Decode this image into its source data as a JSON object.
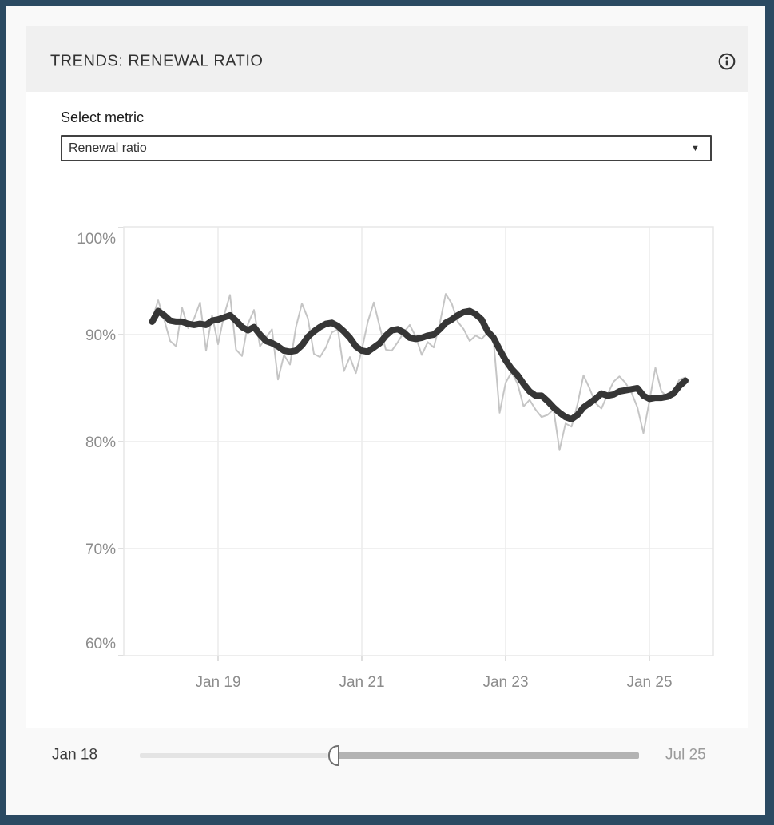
{
  "header": {
    "title": "TRENDS: RENEWAL RATIO",
    "info_icon": "info-circle-icon"
  },
  "metric_selector": {
    "label": "Select metric",
    "selected_value": "Renewal ratio",
    "caret_icon": "caret-down-icon"
  },
  "chart_data": {
    "type": "line",
    "title": "",
    "xlabel": "",
    "ylabel": "",
    "grid": true,
    "legend_position": "none",
    "y_axis": {
      "range": [
        60,
        100
      ],
      "tick_values": [
        100,
        90,
        80,
        70,
        60
      ],
      "tick_labels": [
        "100%",
        "90%",
        "80%",
        "70%",
        "60%"
      ]
    },
    "x_axis": {
      "start_month": "Feb 2018",
      "end_month": "Jul 2025",
      "tick_month_index_from_jan2018": [
        12,
        36,
        60,
        84
      ],
      "tick_labels": [
        "Jan 19",
        "Jan 21",
        "Jan 23",
        "Jan 25"
      ]
    },
    "series": [
      {
        "name": "monthly-renewal-ratio",
        "color": "#c5c5c5",
        "stroke_width": 2,
        "values": [
          91.4,
          93.2,
          91.4,
          89.4,
          88.9,
          92.5,
          90.6,
          91.5,
          93.0,
          88.5,
          91.8,
          89.1,
          91.8,
          93.7,
          88.6,
          88.0,
          91.0,
          92.3,
          88.9,
          89.7,
          90.5,
          85.8,
          88.1,
          87.2,
          90.7,
          92.9,
          91.5,
          88.2,
          87.9,
          88.8,
          90.2,
          90.5,
          86.6,
          87.9,
          86.4,
          88.6,
          91.2,
          93.0,
          90.7,
          88.6,
          88.5,
          89.3,
          90.2,
          90.9,
          89.8,
          88.1,
          89.3,
          88.8,
          91.0,
          93.8,
          92.9,
          91.2,
          90.5,
          89.4,
          89.9,
          89.6,
          90.2,
          89.4,
          82.7,
          85.5,
          86.5,
          85.4,
          83.3,
          83.9,
          83.0,
          82.3,
          82.5,
          83.0,
          79.2,
          81.7,
          81.4,
          83.5,
          86.2,
          85.0,
          83.6,
          83.1,
          84.4,
          85.6,
          86.1,
          85.5,
          84.6,
          83.2,
          80.8,
          83.8,
          86.9,
          84.7,
          84.2,
          84.7,
          85.8,
          86.0
        ]
      },
      {
        "name": "smoothed-trend",
        "color": "#363636",
        "stroke_width": 8,
        "values": [
          91.2,
          92.2,
          91.8,
          91.3,
          91.2,
          91.2,
          91.0,
          90.9,
          91.0,
          90.9,
          91.3,
          91.4,
          91.6,
          91.8,
          91.3,
          90.7,
          90.4,
          90.7,
          90.0,
          89.4,
          89.2,
          88.9,
          88.5,
          88.4,
          88.5,
          89.0,
          89.8,
          90.3,
          90.7,
          91.0,
          91.1,
          90.8,
          90.3,
          89.7,
          88.9,
          88.5,
          88.4,
          88.8,
          89.2,
          89.9,
          90.4,
          90.5,
          90.2,
          89.7,
          89.6,
          89.7,
          89.9,
          90.0,
          90.5,
          91.1,
          91.4,
          91.8,
          92.1,
          92.2,
          91.9,
          91.4,
          90.3,
          89.7,
          88.6,
          87.6,
          86.8,
          86.2,
          85.4,
          84.7,
          84.3,
          84.3,
          83.8,
          83.2,
          82.7,
          82.3,
          82.1,
          82.5,
          83.2,
          83.6,
          84.0,
          84.5,
          84.3,
          84.4,
          84.7,
          84.8,
          84.9,
          85.0,
          84.3,
          84.0,
          84.1,
          84.1,
          84.2,
          84.5,
          85.2,
          85.7
        ]
      }
    ]
  },
  "time_slider": {
    "start_label": "Jan 18",
    "end_label": "Jul 25",
    "handle_position_pct": 38.9
  },
  "colors": {
    "frame": "#2b4a62",
    "page_bg": "#f9f9f9",
    "header_bg": "#f0f0f0",
    "card_bg": "#ffffff",
    "text_dark": "#333333",
    "axis_label": "#8c8c8c",
    "gridline": "#ececec",
    "plot_border": "#e7e7e7",
    "tick": "#d4d4d4",
    "track_light": "#e4e4e4",
    "track_dark": "#b3b3b3"
  }
}
